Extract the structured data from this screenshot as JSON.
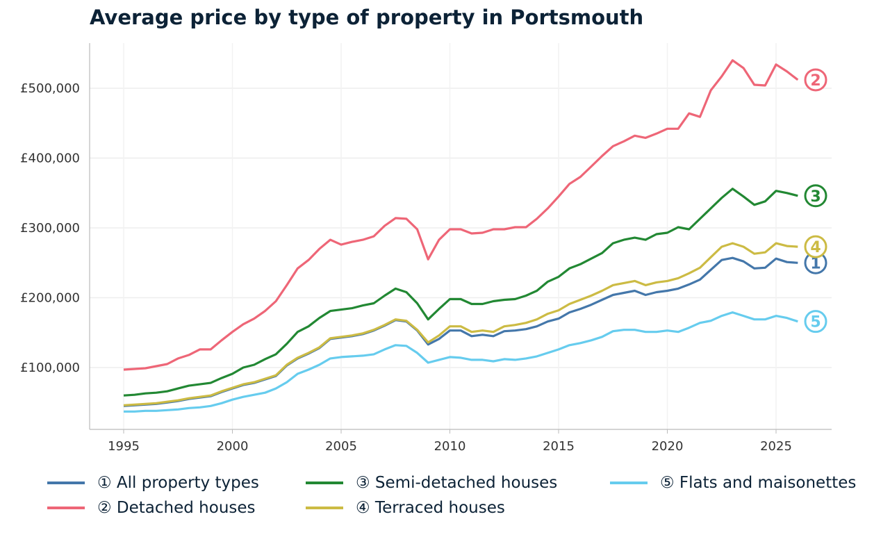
{
  "chart_data": {
    "type": "line",
    "title": "Average price by type of property in Portsmouth",
    "xlabel": "",
    "ylabel": "",
    "xlim": [
      1993.4,
      2027.4
    ],
    "ylim": [
      11000,
      565000
    ],
    "grid": true,
    "legend_placement": "bottom",
    "x_ticks": [
      1995,
      2000,
      2005,
      2010,
      2015,
      2020,
      2025
    ],
    "x_tick_labels": [
      "1995",
      "2000",
      "2005",
      "2010",
      "2015",
      "2020",
      "2025"
    ],
    "y_ticks": [
      100000,
      200000,
      300000,
      400000,
      500000
    ],
    "y_tick_labels": [
      "£100,000",
      "£200,000",
      "£300,000",
      "£400,000",
      "£500,000"
    ],
    "x": [
      1995,
      1995.5,
      1996,
      1996.5,
      1997,
      1997.5,
      1998,
      1998.5,
      1999,
      1999.5,
      2000,
      2000.5,
      2001,
      2001.5,
      2002,
      2002.5,
      2003,
      2003.5,
      2004,
      2004.5,
      2005,
      2005.5,
      2006,
      2006.5,
      2007,
      2007.5,
      2008,
      2008.5,
      2009,
      2009.5,
      2010,
      2010.5,
      2011,
      2011.5,
      2012,
      2012.5,
      2013,
      2013.5,
      2014,
      2014.5,
      2015,
      2015.5,
      2016,
      2016.5,
      2017,
      2017.5,
      2018,
      2018.5,
      2019,
      2019.5,
      2020,
      2020.5,
      2021,
      2021.5,
      2022,
      2022.5,
      2023,
      2023.5,
      2024,
      2024.5,
      2025,
      2025.5,
      2026
    ],
    "series": [
      {
        "name": "① All property types",
        "marker": "1",
        "color": "#4477aa",
        "values": [
          45000,
          46000,
          47000,
          48000,
          50000,
          52000,
          55000,
          57000,
          59000,
          65000,
          70000,
          75000,
          78000,
          83000,
          88000,
          103000,
          113000,
          120000,
          128000,
          141000,
          143000,
          145000,
          148000,
          153000,
          160000,
          168000,
          166000,
          153000,
          133000,
          141000,
          153000,
          153000,
          145000,
          147000,
          145000,
          152000,
          153000,
          155000,
          159000,
          166000,
          170000,
          179000,
          184000,
          190000,
          197000,
          204000,
          207000,
          210000,
          204000,
          208000,
          210000,
          213000,
          219000,
          226000,
          240000,
          254000,
          257000,
          252000,
          242000,
          243000,
          256000,
          251000,
          250000
        ]
      },
      {
        "name": "② Detached houses",
        "marker": "2",
        "color": "#ee6677",
        "values": [
          97000,
          98000,
          99000,
          102000,
          105000,
          113000,
          118000,
          126000,
          126000,
          139000,
          151000,
          162000,
          170000,
          181000,
          195000,
          218000,
          242000,
          254000,
          270000,
          283000,
          276000,
          280000,
          283000,
          288000,
          303000,
          314000,
          313000,
          298000,
          255000,
          283000,
          298000,
          298000,
          292000,
          293000,
          298000,
          298000,
          301000,
          301000,
          313000,
          328000,
          345000,
          363000,
          373000,
          388000,
          403000,
          417000,
          424000,
          432000,
          429000,
          435000,
          442000,
          442000,
          464000,
          459000,
          497000,
          517000,
          540000,
          529000,
          505000,
          504000,
          534000,
          524000,
          512000
        ]
      },
      {
        "name": "③ Semi-detached houses",
        "marker": "3",
        "color": "#228833",
        "values": [
          60000,
          61000,
          63000,
          64000,
          66000,
          70000,
          74000,
          76000,
          78000,
          85000,
          91000,
          100000,
          104000,
          112000,
          119000,
          134000,
          151000,
          159000,
          171000,
          181000,
          183000,
          185000,
          189000,
          192000,
          203000,
          213000,
          208000,
          192000,
          169000,
          184000,
          198000,
          198000,
          191000,
          191000,
          195000,
          197000,
          198000,
          203000,
          210000,
          223000,
          230000,
          242000,
          248000,
          256000,
          264000,
          278000,
          283000,
          286000,
          283000,
          291000,
          293000,
          301000,
          298000,
          313000,
          328000,
          343000,
          356000,
          345000,
          333000,
          338000,
          353000,
          350000,
          346000
        ]
      },
      {
        "name": "④ Terraced houses",
        "marker": "4",
        "color": "#ccbb44",
        "values": [
          46000,
          47000,
          48000,
          49000,
          51000,
          53000,
          56000,
          58000,
          60000,
          66000,
          71000,
          76000,
          79000,
          84000,
          89000,
          104000,
          114000,
          121000,
          129000,
          142000,
          144000,
          146000,
          149000,
          154000,
          161000,
          169000,
          167000,
          154000,
          136000,
          146000,
          159000,
          159000,
          151000,
          153000,
          151000,
          159000,
          161000,
          164000,
          169000,
          177000,
          182000,
          191000,
          197000,
          203000,
          210000,
          218000,
          221000,
          224000,
          218000,
          222000,
          224000,
          228000,
          235000,
          243000,
          258000,
          273000,
          278000,
          273000,
          263000,
          265000,
          278000,
          274000,
          273000
        ]
      },
      {
        "name": "⑤ Flats and maisonettes",
        "marker": "5",
        "color": "#66ccee",
        "values": [
          37000,
          37000,
          38000,
          38000,
          39000,
          40000,
          42000,
          43000,
          45000,
          49000,
          54000,
          58000,
          61000,
          64000,
          70000,
          79000,
          91000,
          97000,
          104000,
          113000,
          115000,
          116000,
          117000,
          119000,
          126000,
          132000,
          131000,
          121000,
          107000,
          111000,
          115000,
          114000,
          111000,
          111000,
          109000,
          112000,
          111000,
          113000,
          116000,
          121000,
          126000,
          132000,
          135000,
          139000,
          144000,
          152000,
          154000,
          154000,
          151000,
          151000,
          153000,
          151000,
          157000,
          164000,
          167000,
          174000,
          179000,
          174000,
          169000,
          169000,
          174000,
          171000,
          166000
        ]
      }
    ]
  }
}
